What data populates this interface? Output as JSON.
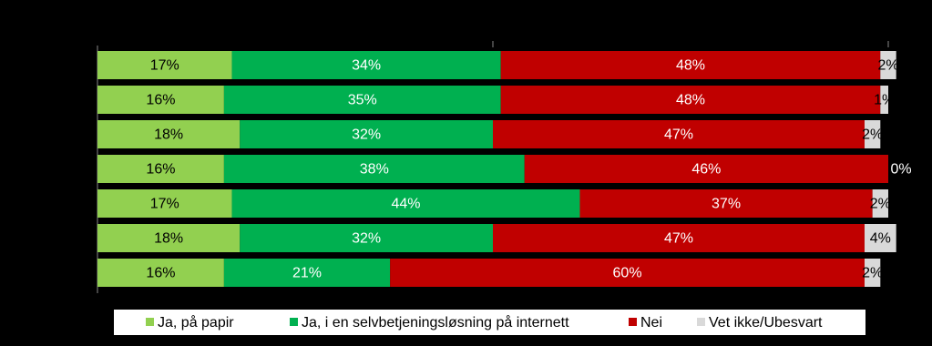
{
  "chart_data": {
    "type": "stacked-bar-horizontal",
    "xlim": [
      0,
      100
    ],
    "series": [
      {
        "name": "Ja, på papir",
        "color": "#92d050",
        "label_color": "#000000",
        "values": [
          17,
          16,
          18,
          16,
          17,
          18,
          16
        ],
        "value_labels": [
          "17%",
          "16%",
          "18%",
          "16%",
          "17%",
          "18%",
          "16%"
        ]
      },
      {
        "name": "Ja, i en selvbetjeningsløsning på internett",
        "color": "#00b050",
        "label_color": "#ffffff",
        "values": [
          34,
          35,
          32,
          38,
          44,
          32,
          21
        ],
        "value_labels": [
          "34%",
          "35%",
          "32%",
          "38%",
          "44%",
          "32%",
          "21%"
        ]
      },
      {
        "name": "Nei",
        "color": "#c00000",
        "label_color": "#ffffff",
        "values": [
          48,
          48,
          47,
          46,
          37,
          47,
          60
        ],
        "value_labels": [
          "48%",
          "48%",
          "47%",
          "46%",
          "37%",
          "47%",
          "60%"
        ]
      },
      {
        "name": "Vet ikke/Ubesvart",
        "color": "#d9d9d9",
        "label_color": "#000000",
        "values": [
          2,
          1,
          2,
          0,
          2,
          4,
          2
        ],
        "value_labels": [
          "2%",
          "1%",
          "2%",
          "0%",
          "2%",
          "4%",
          "2%"
        ]
      }
    ],
    "legend": "bottom"
  }
}
